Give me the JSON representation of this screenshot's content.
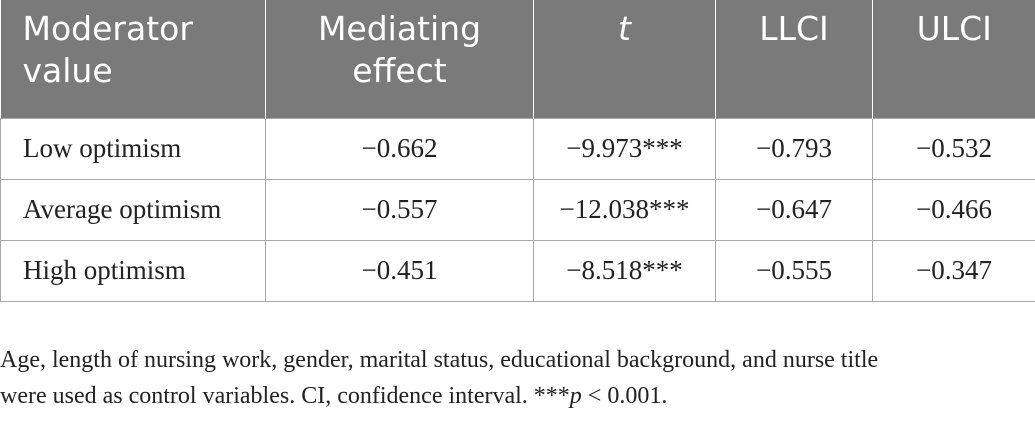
{
  "table": {
    "headers": [
      {
        "line1": "Moderator",
        "line2": "value"
      },
      {
        "line1": "Mediating",
        "line2": "effect"
      },
      {
        "line1": "t",
        "line2": ""
      },
      {
        "line1": "LLCI",
        "line2": ""
      },
      {
        "line1": "ULCI",
        "line2": ""
      }
    ],
    "rows": [
      [
        "Low optimism",
        "−0.662",
        "−9.973***",
        "−0.793",
        "−0.532"
      ],
      [
        "Average optimism",
        "−0.557",
        "−12.038***",
        "−0.647",
        "−0.466"
      ],
      [
        "High optimism",
        "−0.451",
        "−8.518***",
        "−0.555",
        "−0.347"
      ]
    ]
  },
  "footnote": {
    "line1": "Age, length of nursing work, gender, marital status, educational background, and nurse title",
    "line2_a": "were used as control variables. CI, confidence interval. ***",
    "line2_p": "p",
    "line2_b": " < 0.001."
  },
  "colors": {
    "header_bg": "#7a7a7a",
    "header_text": "#ffffff",
    "grid": "#a8a8a8"
  }
}
